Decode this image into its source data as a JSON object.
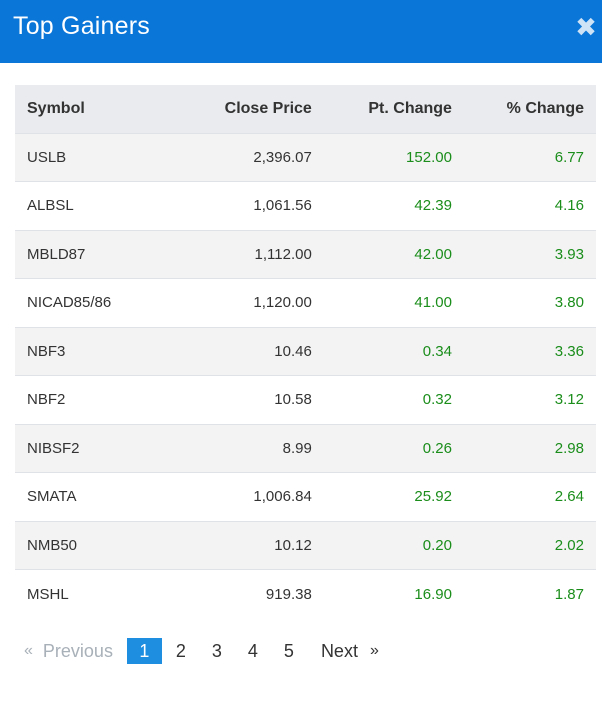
{
  "header": {
    "title": "Top Gainers",
    "close_glyph": "✖"
  },
  "table": {
    "columns": [
      "Symbol",
      "Close Price",
      "Pt. Change",
      "% Change"
    ],
    "rows": [
      {
        "symbol": "USLB",
        "close": "2,396.07",
        "pt": "152.00",
        "pct": "6.77"
      },
      {
        "symbol": "ALBSL",
        "close": "1,061.56",
        "pt": "42.39",
        "pct": "4.16"
      },
      {
        "symbol": "MBLD87",
        "close": "1,112.00",
        "pt": "42.00",
        "pct": "3.93"
      },
      {
        "symbol": "NICAD85/86",
        "close": "1,120.00",
        "pt": "41.00",
        "pct": "3.80"
      },
      {
        "symbol": "NBF3",
        "close": "10.46",
        "pt": "0.34",
        "pct": "3.36"
      },
      {
        "symbol": "NBF2",
        "close": "10.58",
        "pt": "0.32",
        "pct": "3.12"
      },
      {
        "symbol": "NIBSF2",
        "close": "8.99",
        "pt": "0.26",
        "pct": "2.98"
      },
      {
        "symbol": "SMATA",
        "close": "1,006.84",
        "pt": "25.92",
        "pct": "2.64"
      },
      {
        "symbol": "NMB50",
        "close": "10.12",
        "pt": "0.20",
        "pct": "2.02"
      },
      {
        "symbol": "MSHL",
        "close": "919.38",
        "pt": "16.90",
        "pct": "1.87"
      }
    ]
  },
  "pagination": {
    "first_arrow": "«",
    "previous": "Previous",
    "pages": [
      "1",
      "2",
      "3",
      "4",
      "5"
    ],
    "active_page": "1",
    "next": "Next",
    "last_arrow": "»"
  },
  "colors": {
    "header_bg": "#0a76d8",
    "positive": "#1a8d1a",
    "active_page_bg": "#1e8ee0"
  }
}
